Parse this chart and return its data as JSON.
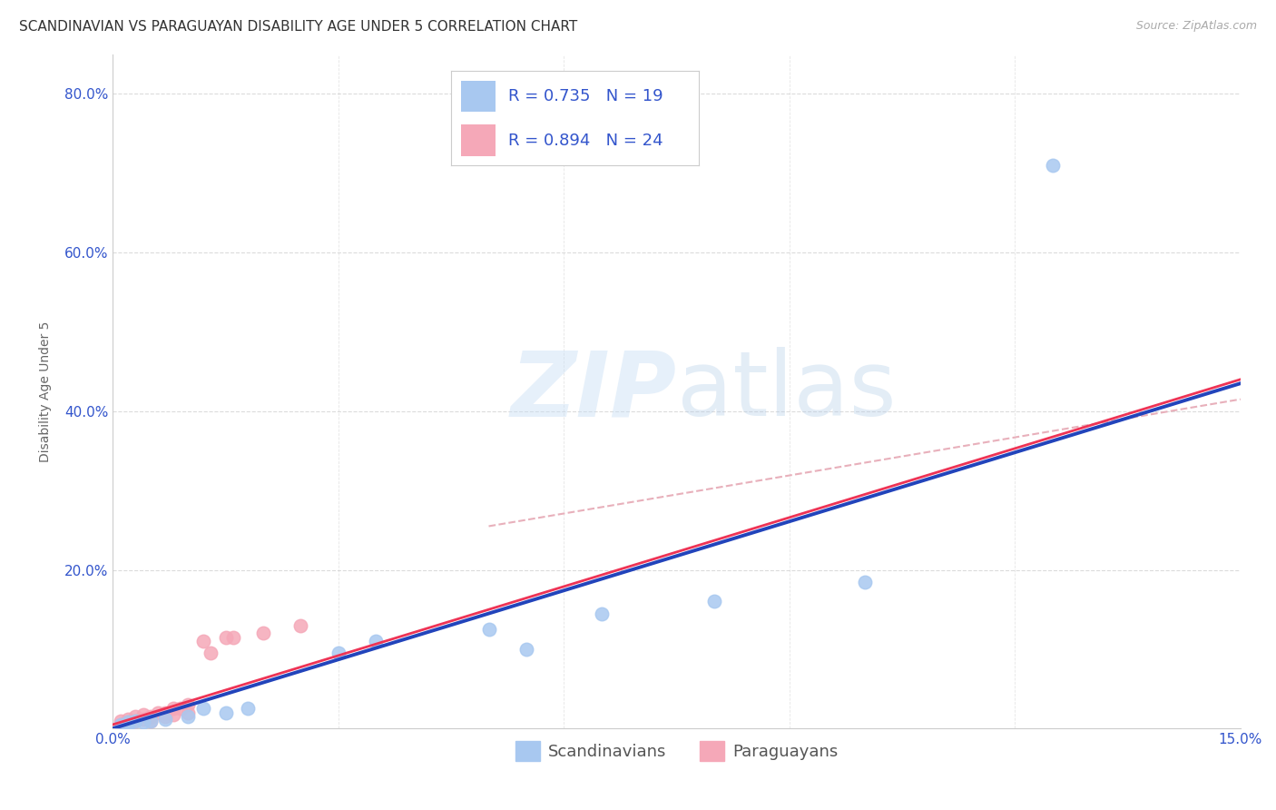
{
  "title": "SCANDINAVIAN VS PARAGUAYAN DISABILITY AGE UNDER 5 CORRELATION CHART",
  "source": "Source: ZipAtlas.com",
  "ylabel": "Disability Age Under 5",
  "xlabel": "",
  "xlim": [
    0.0,
    0.15
  ],
  "ylim": [
    0.0,
    0.85
  ],
  "xticks": [
    0.0,
    0.03,
    0.06,
    0.09,
    0.12,
    0.15
  ],
  "xticklabels": [
    "0.0%",
    "",
    "",
    "",
    "",
    "15.0%"
  ],
  "yticks": [
    0.0,
    0.2,
    0.4,
    0.6,
    0.8
  ],
  "yticklabels": [
    "",
    "20.0%",
    "40.0%",
    "60.0%",
    "80.0%"
  ],
  "background_color": "#ffffff",
  "grid_color": "#cccccc",
  "scandinavian_color": "#a8c8f0",
  "paraguayan_color": "#f5a8b8",
  "line_blue": "#2244bb",
  "line_pink": "#ee3355",
  "line_dashed_color": "#e8b0bb",
  "legend_r1": "R = 0.735",
  "legend_n1": "N = 19",
  "legend_r2": "R = 0.894",
  "legend_n2": "N = 24",
  "scandinavian_x": [
    0.001,
    0.002,
    0.002,
    0.003,
    0.004,
    0.005,
    0.007,
    0.01,
    0.012,
    0.015,
    0.018,
    0.03,
    0.035,
    0.05,
    0.055,
    0.065,
    0.08,
    0.1,
    0.125
  ],
  "scandinavian_y": [
    0.005,
    0.005,
    0.008,
    0.01,
    0.008,
    0.01,
    0.012,
    0.015,
    0.025,
    0.02,
    0.025,
    0.095,
    0.11,
    0.125,
    0.1,
    0.145,
    0.16,
    0.185,
    0.71
  ],
  "paraguayan_x": [
    0.001,
    0.001,
    0.002,
    0.002,
    0.003,
    0.003,
    0.004,
    0.004,
    0.005,
    0.005,
    0.006,
    0.007,
    0.007,
    0.008,
    0.008,
    0.009,
    0.01,
    0.01,
    0.012,
    0.013,
    0.015,
    0.016,
    0.02,
    0.025
  ],
  "paraguayan_y": [
    0.005,
    0.01,
    0.008,
    0.012,
    0.01,
    0.015,
    0.012,
    0.018,
    0.01,
    0.015,
    0.02,
    0.015,
    0.02,
    0.018,
    0.025,
    0.025,
    0.03,
    0.02,
    0.11,
    0.095,
    0.115,
    0.115,
    0.12,
    0.13
  ],
  "blue_line_x0": 0.0,
  "blue_line_y0": 0.0,
  "blue_line_x1": 0.15,
  "blue_line_y1": 0.435,
  "pink_line_x0": 0.0,
  "pink_line_y0": 0.005,
  "pink_line_x1": 0.15,
  "pink_line_y1": 0.44,
  "dashed_line_x0": 0.05,
  "dashed_line_y0": 0.255,
  "dashed_line_x1": 0.15,
  "dashed_line_y1": 0.415,
  "title_fontsize": 11,
  "axis_label_fontsize": 10,
  "tick_fontsize": 11,
  "legend_fontsize": 13,
  "source_fontsize": 9,
  "marker_size": 110
}
